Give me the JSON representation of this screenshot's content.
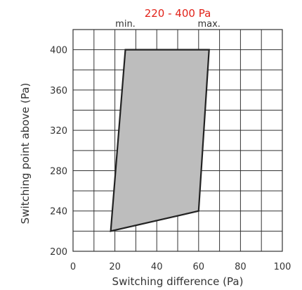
{
  "chart_data": {
    "type": "area",
    "title": "220 - 400 Pa",
    "xlabel": "Switching difference (Pa)",
    "ylabel": "Switching point above (Pa)",
    "xlim": [
      0,
      100
    ],
    "ylim": [
      200,
      420
    ],
    "x_ticks": [
      0,
      20,
      40,
      60,
      80,
      100
    ],
    "y_ticks": [
      200,
      240,
      280,
      320,
      360,
      400
    ],
    "x_grid_step": 10,
    "y_grid_step": 20,
    "grid": true,
    "top_labels": [
      {
        "text": "min.",
        "x": 25
      },
      {
        "text": "max.",
        "x": 65
      }
    ],
    "region": {
      "points": [
        {
          "x": 18,
          "y": 220
        },
        {
          "x": 25,
          "y": 400
        },
        {
          "x": 65,
          "y": 400
        },
        {
          "x": 60,
          "y": 240
        }
      ],
      "fill": "#bdbdbd",
      "stroke": "#222222"
    }
  }
}
